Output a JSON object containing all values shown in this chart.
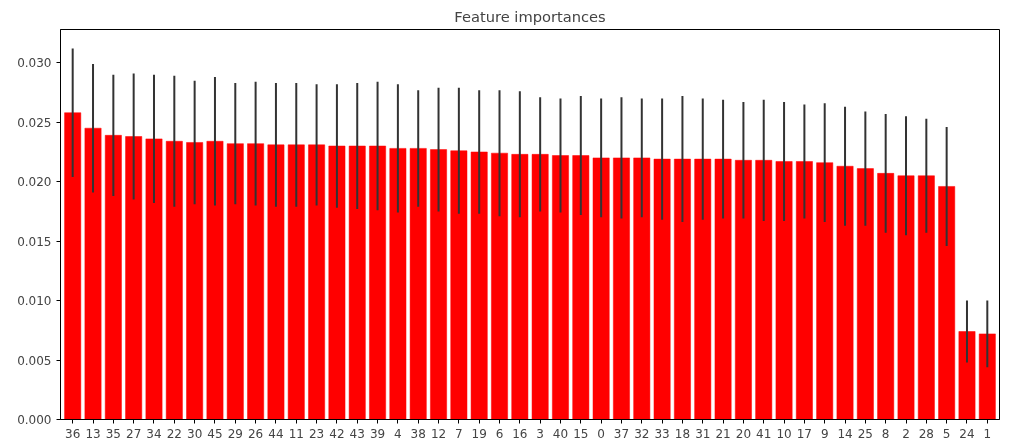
{
  "chart_data": {
    "type": "bar",
    "title": "Feature importances",
    "categories": [
      "36",
      "13",
      "35",
      "27",
      "34",
      "22",
      "30",
      "45",
      "29",
      "26",
      "44",
      "11",
      "23",
      "42",
      "43",
      "39",
      "4",
      "38",
      "12",
      "7",
      "19",
      "6",
      "16",
      "3",
      "40",
      "15",
      "0",
      "37",
      "32",
      "33",
      "18",
      "31",
      "21",
      "20",
      "41",
      "10",
      "17",
      "9",
      "14",
      "25",
      "8",
      "2",
      "28",
      "5",
      "24",
      "1"
    ],
    "values": [
      0.0258,
      0.0245,
      0.0239,
      0.0238,
      0.0236,
      0.0234,
      0.0233,
      0.0234,
      0.0232,
      0.0232,
      0.0231,
      0.0231,
      0.0231,
      0.023,
      0.023,
      0.023,
      0.0228,
      0.0228,
      0.0227,
      0.0226,
      0.0225,
      0.0224,
      0.0223,
      0.0223,
      0.0222,
      0.0222,
      0.022,
      0.022,
      0.022,
      0.0219,
      0.0219,
      0.0219,
      0.0219,
      0.0218,
      0.0218,
      0.0217,
      0.0217,
      0.0216,
      0.0213,
      0.0211,
      0.0207,
      0.0205,
      0.0205,
      0.0196,
      0.0074,
      0.0072
    ],
    "errors": [
      0.0054,
      0.0054,
      0.0051,
      0.0053,
      0.0054,
      0.0055,
      0.0052,
      0.0054,
      0.0051,
      0.0052,
      0.0052,
      0.0052,
      0.0051,
      0.0052,
      0.0053,
      0.0054,
      0.0054,
      0.0049,
      0.0052,
      0.0053,
      0.0052,
      0.0053,
      0.0053,
      0.0048,
      0.0048,
      0.005,
      0.005,
      0.0051,
      0.005,
      0.0051,
      0.0053,
      0.0051,
      0.005,
      0.0049,
      0.0051,
      0.005,
      0.0048,
      0.005,
      0.005,
      0.0048,
      0.005,
      0.005,
      0.0048,
      0.005,
      0.0026,
      0.0028
    ],
    "color": "#ff0000",
    "ylim": [
      0,
      0.0328
    ],
    "yticks": [
      {
        "value": 0,
        "label": "0.000"
      },
      {
        "value": 0.005,
        "label": "0.005"
      },
      {
        "value": 0.01,
        "label": "0.010"
      },
      {
        "value": 0.015,
        "label": "0.015"
      },
      {
        "value": 0.02,
        "label": "0.020"
      },
      {
        "value": 0.025,
        "label": "0.025"
      },
      {
        "value": 0.03,
        "label": "0.030"
      }
    ],
    "grid": false
  }
}
